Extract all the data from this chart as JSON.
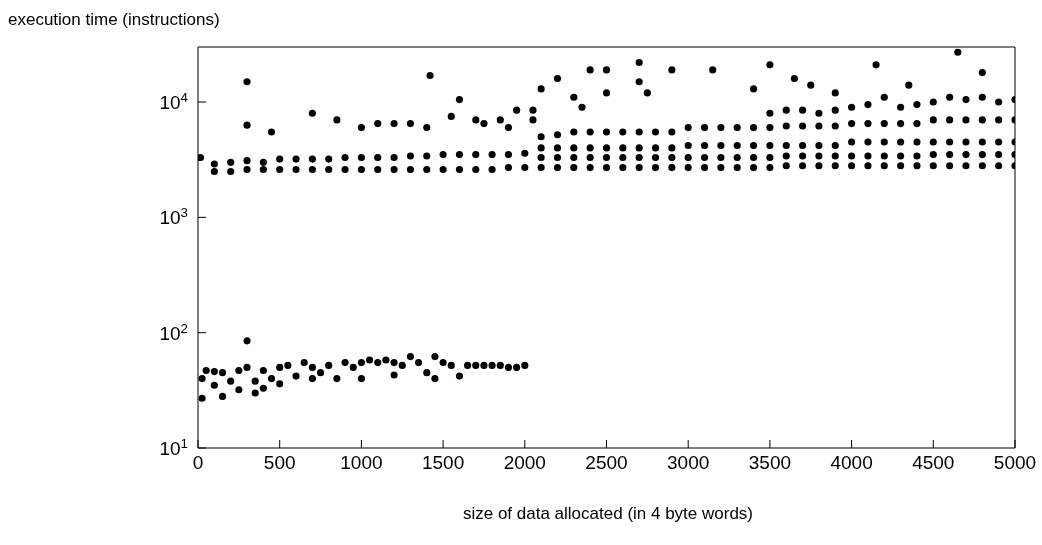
{
  "chart_data": {
    "type": "scatter",
    "xlabel": "size of data allocated (in 4 byte words)",
    "ylabel": "execution time (instructions)",
    "log": "y",
    "xlim": [
      0,
      5000
    ],
    "xticks": [
      0,
      500,
      1000,
      1500,
      2000,
      2500,
      3000,
      3500,
      4000,
      4500,
      5000
    ],
    "ylim": [
      10,
      30000
    ],
    "yticks": [
      {
        "value": 10,
        "label": "10$^{1}$"
      },
      {
        "value": 100,
        "label": "10$^{2}$"
      },
      {
        "value": 1000,
        "label": "10$^{3}$"
      },
      {
        "value": 10000,
        "label": "10$^{4}$"
      }
    ],
    "marker": "circle",
    "grid": false,
    "legend": false,
    "series": [
      {
        "color": "#000000",
        "x": [
          25,
          25,
          50,
          100,
          100,
          150,
          150,
          200,
          250,
          250,
          300,
          300,
          350,
          350,
          400,
          400,
          450,
          500,
          500,
          550,
          600,
          650,
          700,
          700,
          750,
          800,
          850,
          900,
          950,
          1000,
          1000,
          1050,
          1100,
          1150,
          1200,
          1200,
          1250,
          1300,
          1350,
          1400,
          1450,
          1450,
          1500,
          1550,
          1600,
          1650,
          1700,
          1750,
          1800,
          1850,
          1900,
          1950,
          2000
        ],
        "values": [
          40,
          27,
          47,
          46,
          35,
          28,
          45,
          38,
          47,
          32,
          85,
          50,
          30,
          38,
          47,
          33,
          40,
          50,
          36,
          52,
          42,
          55,
          50,
          40,
          45,
          52,
          40,
          55,
          50,
          40,
          55,
          58,
          55,
          58,
          55,
          43,
          52,
          62,
          55,
          45,
          62,
          40,
          55,
          52,
          42,
          52,
          52,
          52,
          52,
          52,
          50,
          50,
          52
        ]
      },
      {
        "color": "#000000",
        "x": [
          15,
          100,
          100,
          200,
          200,
          300,
          300,
          400,
          400,
          500,
          500,
          600,
          600,
          700,
          700,
          800,
          800,
          900,
          900,
          1000,
          1000,
          1100,
          1100,
          1200,
          1200,
          1300,
          1300,
          1400,
          1400,
          1500,
          1500,
          1600,
          1600,
          1700,
          1700,
          1800,
          1800,
          1900,
          1900,
          2000,
          2000,
          2100,
          2100,
          2200,
          2200,
          2300,
          2300,
          2400,
          2400,
          2500,
          2500,
          2600,
          2600,
          2700,
          2700,
          2800,
          2800,
          2900,
          2900,
          3000,
          3000,
          3100,
          3100,
          3200,
          3200,
          3300,
          3300,
          3400,
          3400,
          3500,
          3500,
          3600,
          3600,
          3700,
          3700,
          3800,
          3800,
          3900,
          3900,
          4000,
          4000,
          4100,
          4100,
          4200,
          4200,
          4300,
          4300,
          4400,
          4400,
          4500,
          4500,
          4600,
          4600,
          4700,
          4700,
          4800,
          4800,
          4900,
          4900,
          5000,
          5000
        ],
        "values": [
          3300,
          2500,
          2900,
          2500,
          3000,
          2600,
          3100,
          2600,
          3000,
          2600,
          3200,
          2600,
          3200,
          2600,
          3200,
          2600,
          3200,
          2600,
          3300,
          2600,
          3300,
          2600,
          3300,
          2600,
          3300,
          2600,
          3400,
          2600,
          3400,
          2600,
          3500,
          2600,
          3500,
          2600,
          3500,
          2600,
          3500,
          2700,
          3500,
          2700,
          3600,
          2700,
          3300,
          2700,
          3300,
          2700,
          3300,
          2700,
          3300,
          2700,
          3300,
          2700,
          3300,
          2700,
          3300,
          2700,
          3300,
          2700,
          3300,
          2700,
          3300,
          2700,
          3300,
          2700,
          3300,
          2700,
          3300,
          2700,
          3300,
          2700,
          3300,
          2800,
          3400,
          2800,
          3400,
          2800,
          3400,
          2800,
          3400,
          2800,
          3400,
          2800,
          3400,
          2800,
          3400,
          2800,
          3400,
          2800,
          3400,
          2800,
          3500,
          2800,
          3500,
          2800,
          3500,
          2800,
          3500,
          2800,
          3500,
          2800,
          3500
        ]
      },
      {
        "color": "#000000",
        "x": [
          2100,
          2100,
          2200,
          2200,
          2300,
          2300,
          2400,
          2400,
          2500,
          2500,
          2600,
          2600,
          2700,
          2700,
          2800,
          2800,
          2900,
          2900,
          3000,
          3000,
          3100,
          3100,
          3200,
          3200,
          3300,
          3300,
          3400,
          3400,
          3500,
          3500,
          3600,
          3600,
          3700,
          3700,
          3800,
          3800,
          3900,
          3900,
          4000,
          4000,
          4100,
          4100,
          4200,
          4200,
          4300,
          4300,
          4400,
          4400,
          4500,
          4500,
          4600,
          4600,
          4700,
          4700,
          4800,
          4800,
          4900,
          4900,
          5000,
          5000
        ],
        "values": [
          4000,
          5000,
          4000,
          5200,
          4000,
          5500,
          4000,
          5500,
          4000,
          5500,
          4000,
          5500,
          4000,
          5500,
          4000,
          5500,
          4000,
          5500,
          4200,
          6000,
          4200,
          6000,
          4200,
          6000,
          4200,
          6000,
          4200,
          6000,
          4200,
          6000,
          4200,
          6200,
          4200,
          6200,
          4200,
          6200,
          4200,
          6200,
          4500,
          6500,
          4500,
          6500,
          4500,
          6500,
          4500,
          6500,
          4500,
          6500,
          4500,
          7000,
          4500,
          7000,
          4500,
          7000,
          4500,
          7000,
          4500,
          7000,
          4500,
          7000
        ]
      },
      {
        "color": "#000000",
        "x": [
          3500,
          3600,
          3700,
          3800,
          3900,
          4000,
          4100,
          4200,
          4300,
          4400,
          4500,
          4600,
          4700,
          4800,
          4900,
          5000
        ],
        "values": [
          8000,
          8500,
          8500,
          8000,
          8500,
          9000,
          9500,
          11000,
          9000,
          9500,
          10000,
          11000,
          10500,
          11000,
          10000,
          10500
        ]
      },
      {
        "color": "#000000",
        "x": [
          300,
          300,
          450,
          700,
          850,
          1000,
          1100,
          1200,
          1300,
          1400,
          1420,
          1550,
          1600,
          1700,
          1750,
          1850,
          1900,
          1950,
          2050,
          2050,
          2100,
          2200,
          2300,
          2350,
          2400,
          2500,
          2500,
          2700,
          2700,
          2750,
          2900,
          3150,
          3400,
          3500,
          3650,
          3750,
          3900,
          4150,
          4350,
          4650,
          4800
        ],
        "values": [
          15000,
          6300,
          5500,
          8000,
          7000,
          6000,
          6500,
          6500,
          6500,
          6000,
          17000,
          7500,
          10500,
          7000,
          6500,
          7000,
          6000,
          8500,
          8500,
          7000,
          13000,
          16000,
          11000,
          9000,
          19000,
          19000,
          12000,
          22000,
          15000,
          12000,
          19000,
          19000,
          13000,
          21000,
          16000,
          14000,
          12000,
          21000,
          14000,
          27000,
          18000
        ]
      }
    ]
  }
}
